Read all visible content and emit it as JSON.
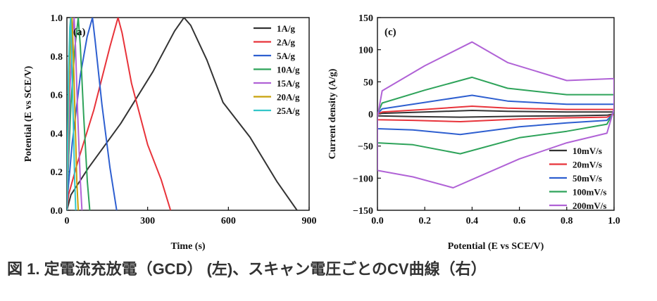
{
  "caption": "図 1. 定電流充放電（GCD） (左)、スキャン電圧ごとのCV曲線（右）",
  "chart_data": [
    {
      "type": "line",
      "panel_label": "(a)",
      "xlabel": "Time (s)",
      "ylabel": "Potential (E vs SCE/V)",
      "xlim": [
        0,
        900
      ],
      "ylim": [
        0.0,
        1.0
      ],
      "xticks": [
        "0",
        "300",
        "600",
        "900"
      ],
      "yticks": [
        "0.0",
        "0.2",
        "0.4",
        "0.6",
        "0.8",
        "1.0"
      ],
      "legend_position": "top-right",
      "series": [
        {
          "name": "1A/g",
          "color": "#333333",
          "points": [
            [
              0,
              0
            ],
            [
              15,
              0.08
            ],
            [
              80,
              0.22
            ],
            [
              200,
              0.45
            ],
            [
              320,
              0.72
            ],
            [
              400,
              0.93
            ],
            [
              435,
              1.0
            ],
            [
              460,
              0.96
            ],
            [
              520,
              0.78
            ],
            [
              580,
              0.56
            ],
            [
              680,
              0.38
            ],
            [
              780,
              0.15
            ],
            [
              855,
              0.0
            ]
          ]
        },
        {
          "name": "2A/g",
          "color": "#e8333a",
          "points": [
            [
              0,
              0
            ],
            [
              6,
              0.08
            ],
            [
              40,
              0.25
            ],
            [
              100,
              0.52
            ],
            [
              160,
              0.85
            ],
            [
              190,
              1.0
            ],
            [
              205,
              0.92
            ],
            [
              240,
              0.66
            ],
            [
              300,
              0.34
            ],
            [
              350,
              0.16
            ],
            [
              385,
              0.0
            ]
          ]
        },
        {
          "name": "5A/g",
          "color": "#2e5fd0",
          "points": [
            [
              0,
              0
            ],
            [
              4,
              0.1
            ],
            [
              20,
              0.35
            ],
            [
              50,
              0.7
            ],
            [
              75,
              0.9
            ],
            [
              95,
              1.0
            ],
            [
              105,
              0.88
            ],
            [
              130,
              0.55
            ],
            [
              160,
              0.22
            ],
            [
              185,
              0.0
            ]
          ]
        },
        {
          "name": "10A/g",
          "color": "#2ea35a",
          "points": [
            [
              0,
              0
            ],
            [
              3,
              0.15
            ],
            [
              15,
              0.55
            ],
            [
              30,
              0.85
            ],
            [
              42,
              1.0
            ],
            [
              50,
              0.85
            ],
            [
              62,
              0.5
            ],
            [
              76,
              0.15
            ],
            [
              85,
              0.0
            ]
          ]
        },
        {
          "name": "15A/g",
          "color": "#b062d6",
          "points": [
            [
              0,
              0
            ],
            [
              3,
              0.2
            ],
            [
              12,
              0.65
            ],
            [
              22,
              0.92
            ],
            [
              27,
              1.0
            ],
            [
              32,
              0.85
            ],
            [
              40,
              0.5
            ],
            [
              50,
              0.15
            ],
            [
              56,
              0.0
            ]
          ]
        },
        {
          "name": "20A/g",
          "color": "#c8a10a",
          "points": [
            [
              0,
              0
            ],
            [
              2,
              0.25
            ],
            [
              8,
              0.68
            ],
            [
              15,
              0.93
            ],
            [
              19,
              1.0
            ],
            [
              23,
              0.85
            ],
            [
              30,
              0.5
            ],
            [
              37,
              0.15
            ],
            [
              42,
              0.0
            ]
          ]
        },
        {
          "name": "25A/g",
          "color": "#34c6c9",
          "points": [
            [
              0,
              0
            ],
            [
              2,
              0.3
            ],
            [
              6,
              0.72
            ],
            [
              11,
              0.95
            ],
            [
              14,
              1.0
            ],
            [
              17,
              0.85
            ],
            [
              23,
              0.5
            ],
            [
              29,
              0.15
            ],
            [
              33,
              0.0
            ]
          ]
        }
      ]
    },
    {
      "type": "line",
      "panel_label": "(c)",
      "xlabel": "Potential (E vs SCE/V)",
      "ylabel": "Current density (A/g)",
      "xlim": [
        0.0,
        1.0
      ],
      "ylim": [
        -150,
        150
      ],
      "xticks": [
        "0.0",
        "0.2",
        "0.4",
        "0.6",
        "0.8",
        "1.0"
      ],
      "yticks": [
        "150",
        "100",
        "50",
        "0",
        "−50",
        "−100",
        "−150"
      ],
      "legend_position": "bottom-right",
      "series": [
        {
          "name": "10mV/s",
          "color": "#333333",
          "points": [
            [
              0,
              0
            ],
            [
              0.02,
              1
            ],
            [
              0.2,
              3
            ],
            [
              0.4,
              5.5
            ],
            [
              0.55,
              4
            ],
            [
              0.8,
              3
            ],
            [
              1,
              3
            ],
            [
              1,
              0
            ],
            [
              0.97,
              -2
            ],
            [
              0.8,
              -3
            ],
            [
              0.6,
              -3.5
            ],
            [
              0.35,
              -5
            ],
            [
              0.15,
              -4
            ],
            [
              0,
              -3
            ],
            [
              0,
              0
            ]
          ]
        },
        {
          "name": "20mV/s",
          "color": "#e8333a",
          "points": [
            [
              0,
              0
            ],
            [
              0.02,
              3
            ],
            [
              0.2,
              7
            ],
            [
              0.4,
              12
            ],
            [
              0.55,
              9
            ],
            [
              0.8,
              7
            ],
            [
              1,
              7
            ],
            [
              1,
              0
            ],
            [
              0.97,
              -5
            ],
            [
              0.8,
              -6
            ],
            [
              0.6,
              -8
            ],
            [
              0.35,
              -12
            ],
            [
              0.15,
              -10
            ],
            [
              0,
              -9
            ],
            [
              0,
              0
            ]
          ]
        },
        {
          "name": "50mV/s",
          "color": "#2e5fd0",
          "points": [
            [
              0,
              0
            ],
            [
              0.02,
              8
            ],
            [
              0.2,
              18
            ],
            [
              0.4,
              29
            ],
            [
              0.55,
              20
            ],
            [
              0.8,
              15
            ],
            [
              1,
              15
            ],
            [
              1,
              2
            ],
            [
              0.97,
              -10
            ],
            [
              0.8,
              -14
            ],
            [
              0.6,
              -20
            ],
            [
              0.35,
              -32
            ],
            [
              0.15,
              -25
            ],
            [
              0,
              -23
            ],
            [
              0,
              0
            ]
          ]
        },
        {
          "name": "100mV/s",
          "color": "#2ea35a",
          "points": [
            [
              0,
              0
            ],
            [
              0.02,
              17
            ],
            [
              0.2,
              37
            ],
            [
              0.4,
              57
            ],
            [
              0.55,
              40
            ],
            [
              0.8,
              30
            ],
            [
              1,
              30
            ],
            [
              1,
              4
            ],
            [
              0.97,
              -16
            ],
            [
              0.8,
              -27
            ],
            [
              0.6,
              -37
            ],
            [
              0.35,
              -62
            ],
            [
              0.15,
              -48
            ],
            [
              0,
              -45
            ],
            [
              0,
              0
            ]
          ]
        },
        {
          "name": "200mV/s",
          "color": "#b062d6",
          "points": [
            [
              0,
              -5
            ],
            [
              0.02,
              36
            ],
            [
              0.2,
              75
            ],
            [
              0.4,
              112
            ],
            [
              0.55,
              80
            ],
            [
              0.8,
              52
            ],
            [
              1,
              55
            ],
            [
              1,
              8
            ],
            [
              0.97,
              -30
            ],
            [
              0.8,
              -45
            ],
            [
              0.6,
              -70
            ],
            [
              0.32,
              -115
            ],
            [
              0.15,
              -98
            ],
            [
              0,
              -88
            ],
            [
              0,
              -5
            ]
          ]
        }
      ]
    }
  ]
}
